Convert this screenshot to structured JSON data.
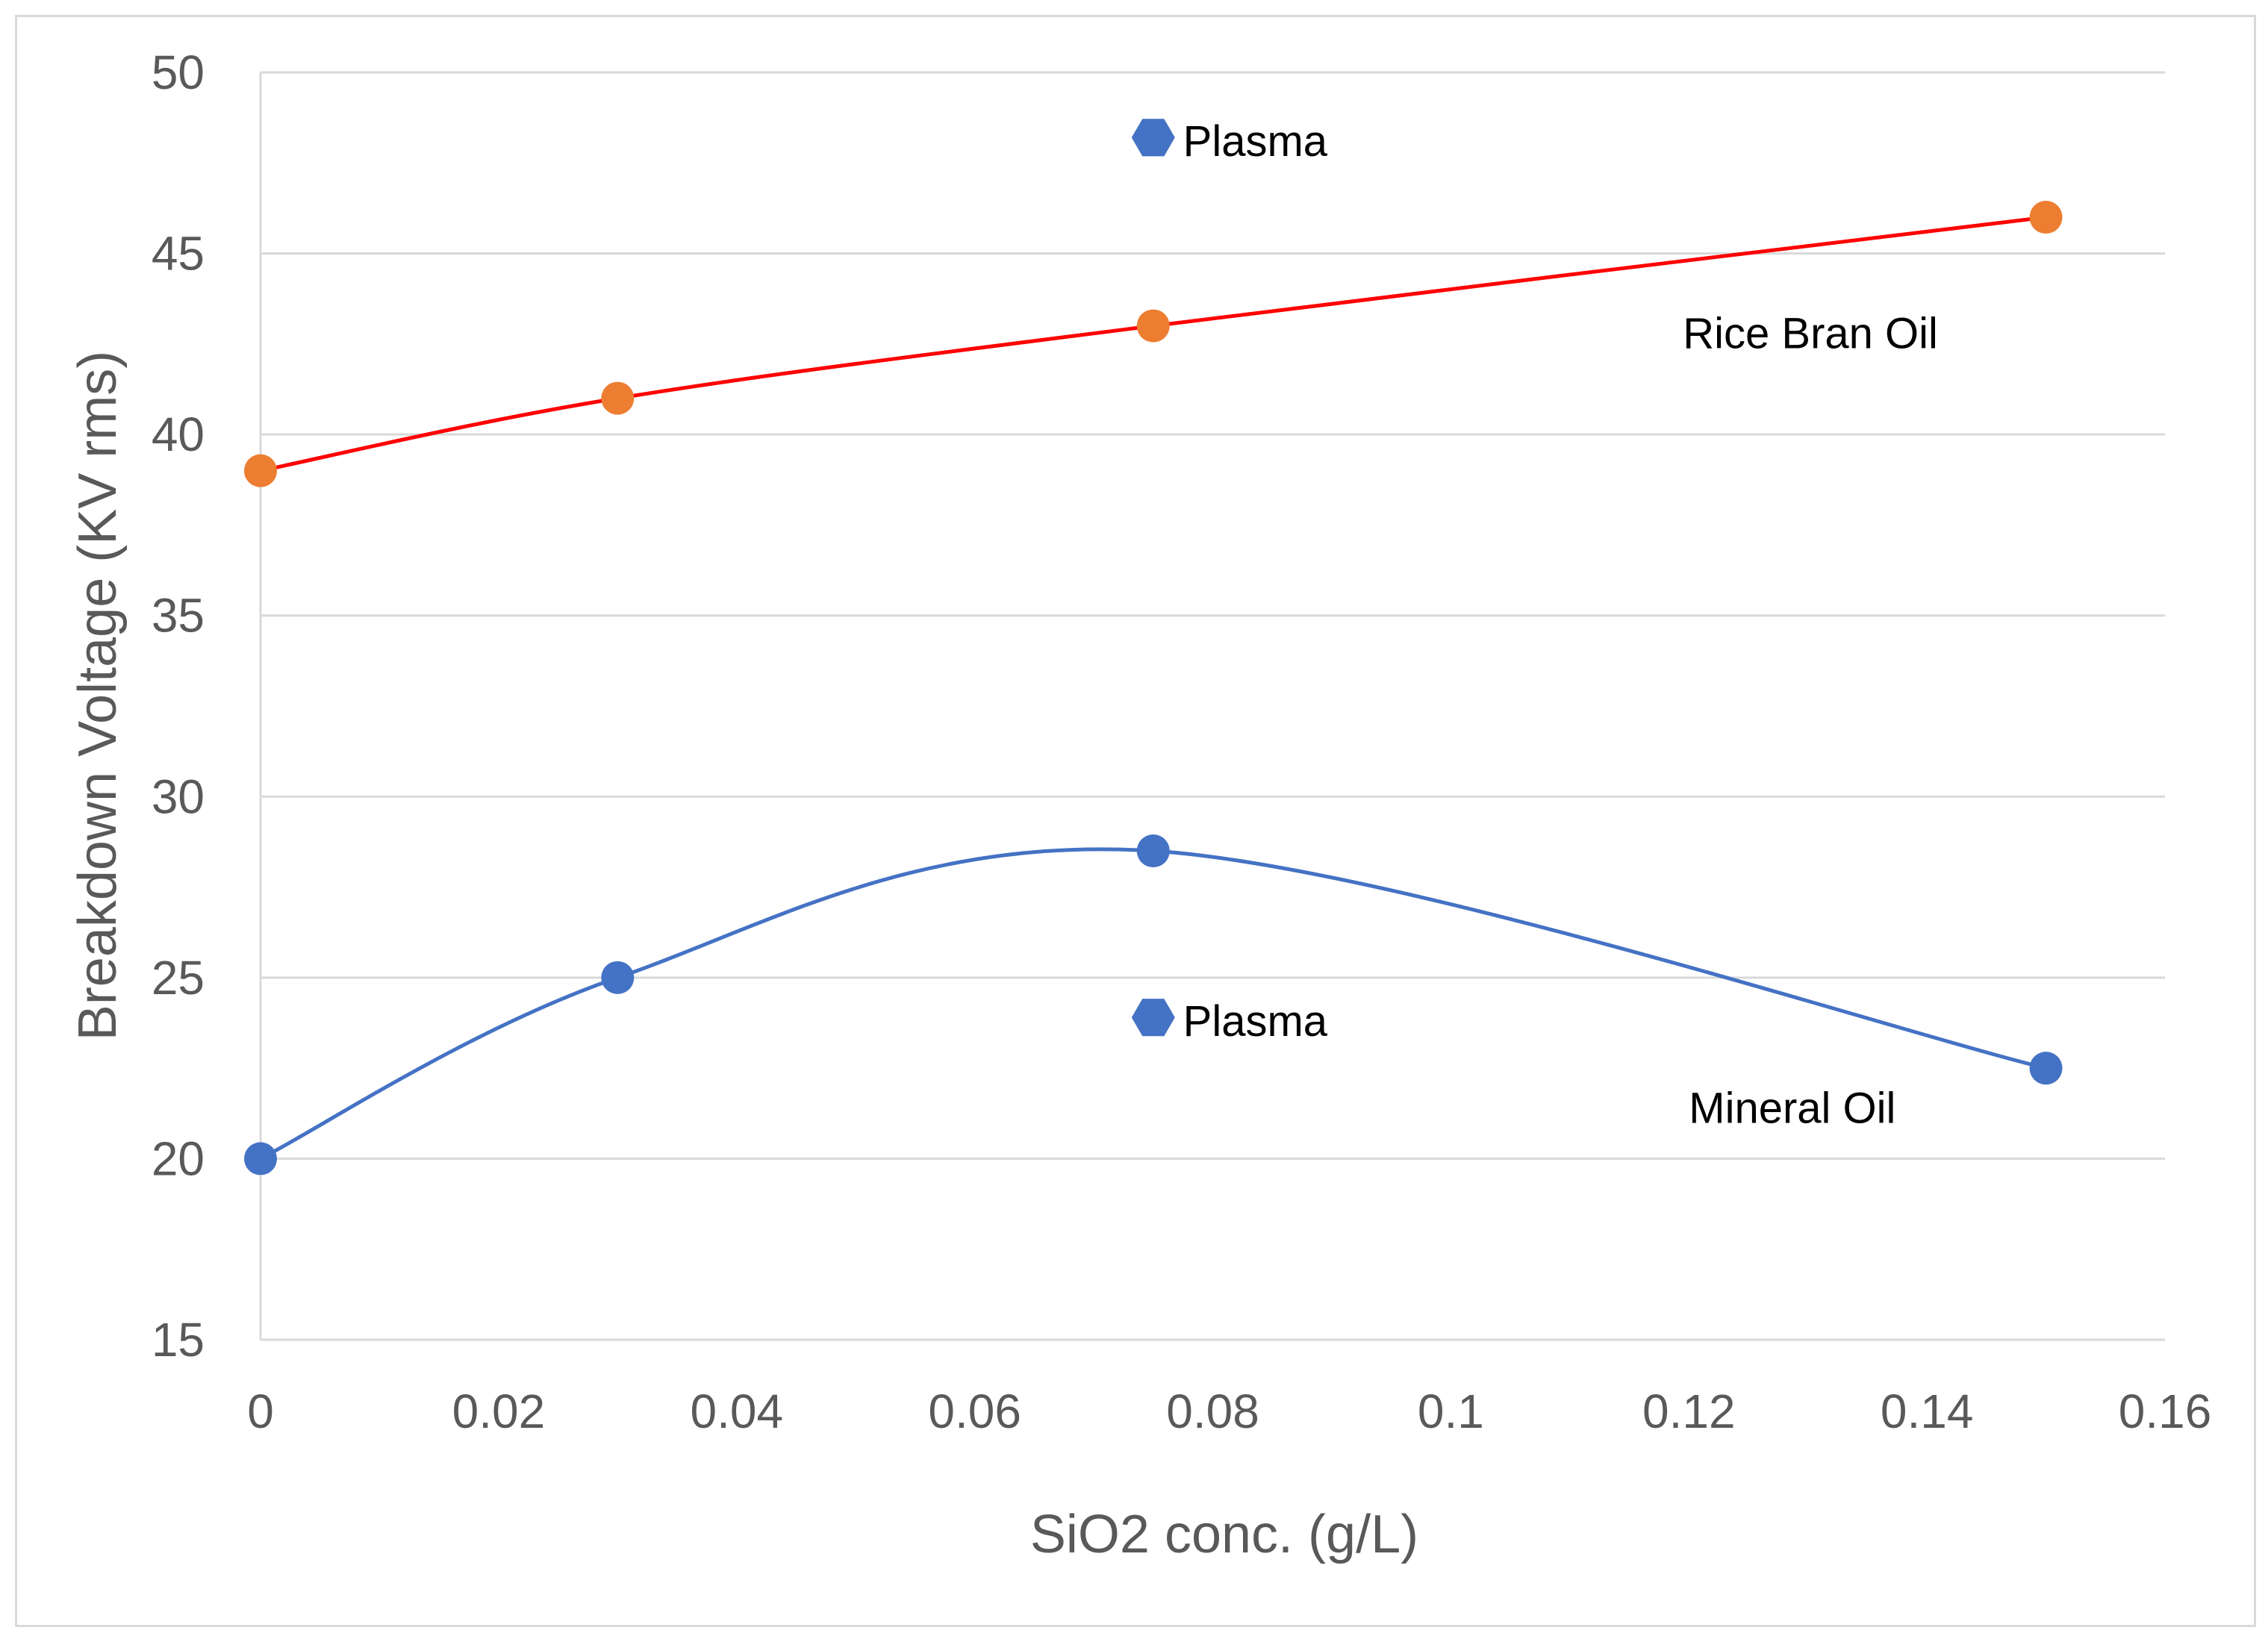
{
  "chart_data": {
    "type": "line",
    "title": "",
    "xlabel": "SiO2 conc. (g/L)",
    "ylabel": "Breakdown Voltage (KV rms)",
    "xlim": [
      0,
      0.16
    ],
    "ylim": [
      15,
      50
    ],
    "x_ticks": [
      0,
      0.02,
      0.04,
      0.06,
      0.08,
      0.1,
      0.12,
      0.14,
      0.16
    ],
    "x_tick_labels": [
      "0",
      "0.02",
      "0.04",
      "0.06",
      "0.08",
      "0.1",
      "0.12",
      "0.14",
      "0.16"
    ],
    "y_ticks": [
      15,
      20,
      25,
      30,
      35,
      40,
      45,
      50
    ],
    "y_tick_labels": [
      "15",
      "20",
      "25",
      "30",
      "35",
      "40",
      "45",
      "50"
    ],
    "grid": true,
    "series": [
      {
        "name": "Rice Bran Oil",
        "line_color": "#ff0000",
        "marker_color": "#ed7d31",
        "marker": "circle",
        "smooth": true,
        "x": [
          0,
          0.03,
          0.075,
          0.15
        ],
        "y": [
          39,
          41,
          43,
          46
        ]
      },
      {
        "name": "Mineral Oil",
        "line_color": "#4472c4",
        "marker_color": "#4472c4",
        "marker": "circle",
        "smooth": true,
        "x": [
          0,
          0.03,
          0.075,
          0.15
        ],
        "y": [
          20,
          25,
          28.5,
          22.5
        ]
      },
      {
        "name": "Plasma (Rice Bran Oil)",
        "marker_color": "#4472c4",
        "marker": "hexagon",
        "x": [
          0.075
        ],
        "y": [
          48.2
        ]
      },
      {
        "name": "Plasma (Mineral Oil)",
        "marker_color": "#4472c4",
        "marker": "hexagon",
        "x": [
          0.075
        ],
        "y": [
          23.9
        ]
      }
    ],
    "annotations": [
      {
        "text": "Plasma",
        "x": 0.0775,
        "y": 48.1
      },
      {
        "text": "Rice Bran Oil",
        "x": 0.1195,
        "y": 42.8
      },
      {
        "text": "Plasma",
        "x": 0.0775,
        "y": 23.8
      },
      {
        "text": "Mineral Oil",
        "x": 0.12,
        "y": 21.4
      }
    ]
  }
}
